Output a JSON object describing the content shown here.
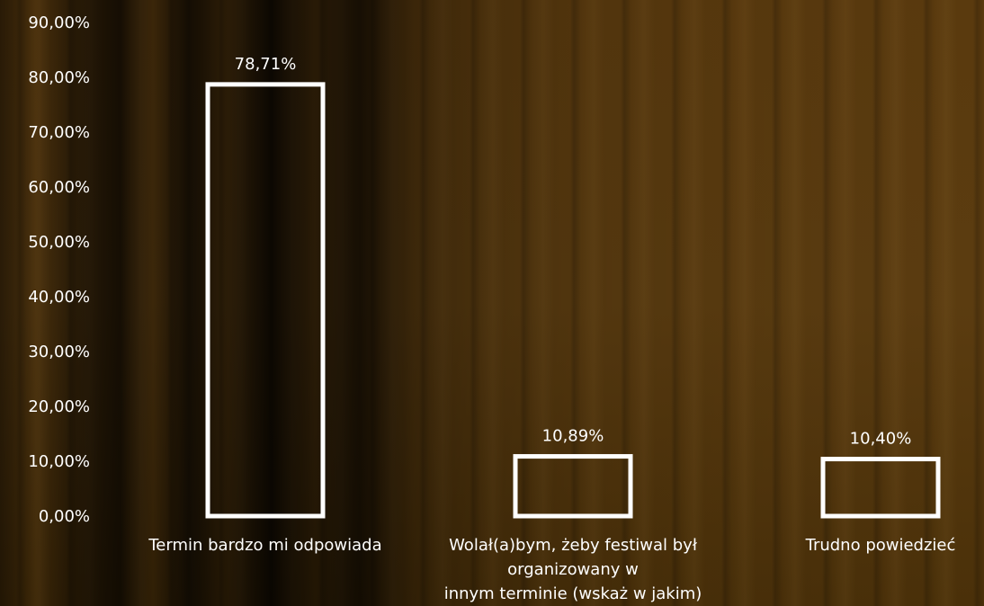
{
  "chart_data": {
    "type": "bar",
    "categories": [
      "Termin bardzo mi odpowiada",
      "Wolał(a)bym, żeby festiwal był organizowany w innym terminie (wskaż w jakim)",
      "Trudno powiedzieć"
    ],
    "category_lines": [
      [
        "Termin bardzo mi odpowiada"
      ],
      [
        "Wolał(a)bym, żeby festiwal był",
        "organizowany w",
        "innym terminie (wskaż w jakim)"
      ],
      [
        "Trudno powiedzieć"
      ]
    ],
    "values": [
      78.71,
      10.89,
      10.4
    ],
    "value_labels": [
      "78,71%",
      "10,89%",
      "10,40%"
    ],
    "ylim": [
      0,
      90
    ],
    "yticks": [
      0,
      10,
      20,
      30,
      40,
      50,
      60,
      70,
      80,
      90
    ],
    "ytick_labels": [
      "0,00%",
      "10,00%",
      "20,00%",
      "30,00%",
      "40,00%",
      "50,00%",
      "60,00%",
      "70,00%",
      "80,00%",
      "90,00%"
    ],
    "grid": false,
    "legend": "none",
    "bar_style": "outline",
    "bar_color": "#ffffff"
  }
}
